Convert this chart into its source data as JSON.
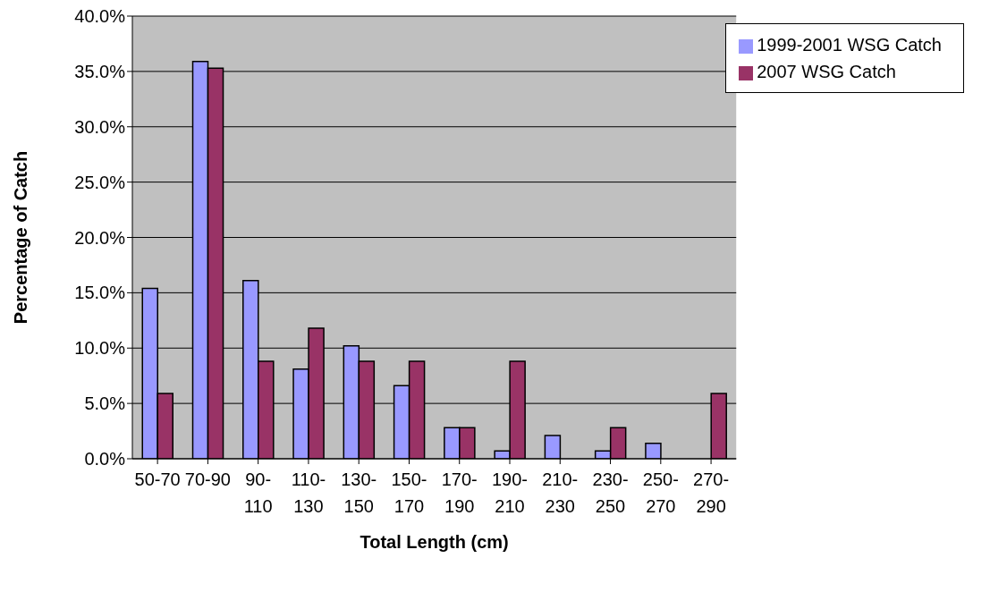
{
  "chart_data": {
    "type": "bar",
    "xlabel": "Total Length (cm)",
    "ylabel": "Percentage of Catch",
    "categories": [
      "50-70",
      "70-90",
      "90-110",
      "110-130",
      "130-150",
      "150-170",
      "170-190",
      "190-210",
      "210-230",
      "230-250",
      "250-270",
      "270-290"
    ],
    "series": [
      {
        "name": "1999-2001 WSG Catch",
        "color": "#9999ff",
        "values": [
          15.4,
          35.9,
          16.1,
          8.1,
          10.2,
          6.6,
          2.8,
          0.7,
          2.1,
          0.7,
          1.4,
          0
        ]
      },
      {
        "name": "2007 WSG Catch",
        "color": "#993366",
        "values": [
          5.9,
          35.3,
          8.8,
          11.8,
          8.8,
          8.8,
          2.8,
          8.8,
          0,
          2.8,
          0,
          5.9
        ]
      }
    ],
    "ylim": [
      0,
      40
    ],
    "yticks": [
      {
        "value": 0,
        "label": "0.0%"
      },
      {
        "value": 5,
        "label": "5.0%"
      },
      {
        "value": 10,
        "label": "10.0%"
      },
      {
        "value": 15,
        "label": "15.0%"
      },
      {
        "value": 20,
        "label": "20.0%"
      },
      {
        "value": 25,
        "label": "25.0%"
      },
      {
        "value": 30,
        "label": "30.0%"
      },
      {
        "value": 35,
        "label": "35.0%"
      },
      {
        "value": 40,
        "label": "40.0%"
      }
    ],
    "grid": "y",
    "legend": "top right"
  }
}
